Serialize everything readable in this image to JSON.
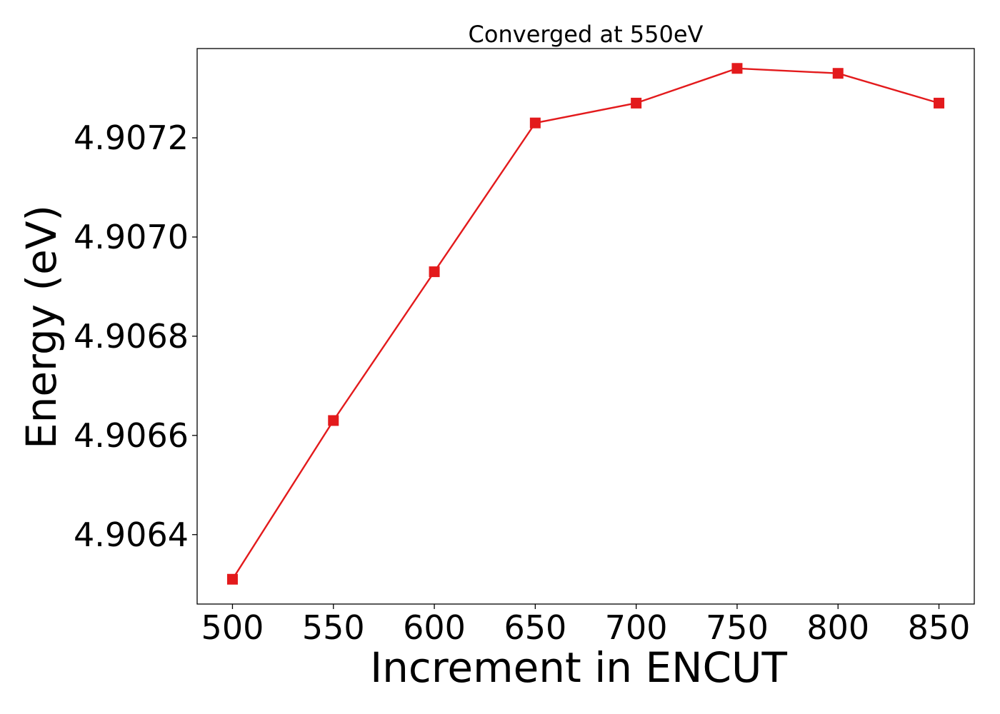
{
  "chart_data": {
    "type": "line",
    "title": "Converged at 550eV",
    "xlabel": "Increment in ENCUT",
    "ylabel": "Energy (eV)",
    "x": [
      500,
      550,
      600,
      650,
      700,
      750,
      800,
      850
    ],
    "series": [
      {
        "values": [
          4.90631,
          4.90663,
          4.90693,
          4.90723,
          4.90727,
          4.90734,
          4.90733,
          4.90727
        ],
        "color": "#e31a1c",
        "marker": "square"
      }
    ],
    "xticks": [
      500,
      550,
      600,
      650,
      700,
      750,
      800,
      850
    ],
    "xtick_labels": [
      "500",
      "550",
      "600",
      "650",
      "700",
      "750",
      "800",
      "850"
    ],
    "yticks": [
      4.9064,
      4.9066,
      4.9068,
      4.907,
      4.9072
    ],
    "ytick_labels": [
      "4.9064",
      "4.9066",
      "4.9068",
      "4.9070",
      "4.9072"
    ],
    "xlim": [
      482.5,
      867.5
    ],
    "ylim": [
      4.90626,
      4.90738
    ],
    "grid": false,
    "legend": "none"
  }
}
